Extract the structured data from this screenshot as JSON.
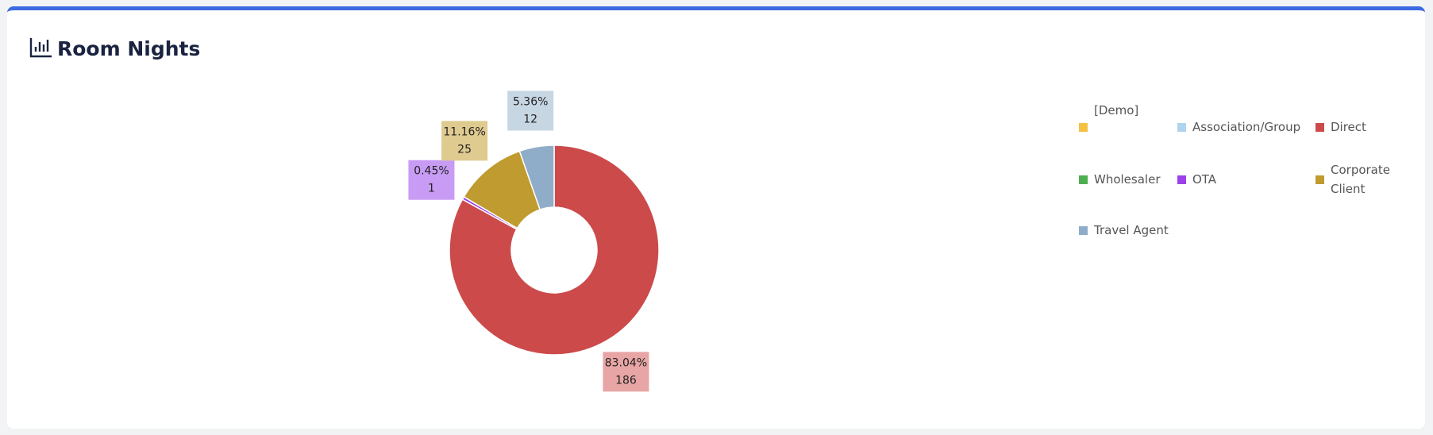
{
  "chart_data": {
    "type": "donut",
    "title": "Room Nights",
    "categories": [
      "[Demo]",
      "Association/Group",
      "Direct",
      "Wholesaler",
      "OTA",
      "Corporate Client",
      "Travel Agent"
    ],
    "values": [
      0,
      0,
      186,
      0,
      1,
      25,
      12
    ],
    "percentages": [
      null,
      null,
      83.04,
      null,
      0.45,
      11.16,
      5.36
    ],
    "percentage_labels": [
      null,
      null,
      "83.04%",
      null,
      "0.45%",
      "11.16%",
      "5.36%"
    ],
    "colors": [
      "#f5c142",
      "#aed4ef",
      "#cc4a4a",
      "#4caf50",
      "#9b42e8",
      "#bf9b30",
      "#8fadc8"
    ],
    "label_colors": [
      "#f9dd97",
      "#d3e7f6",
      "#e8a5a5",
      "#a5d6a7",
      "#c89cf4",
      "#dfca8f",
      "#c7d6e3"
    ]
  }
}
